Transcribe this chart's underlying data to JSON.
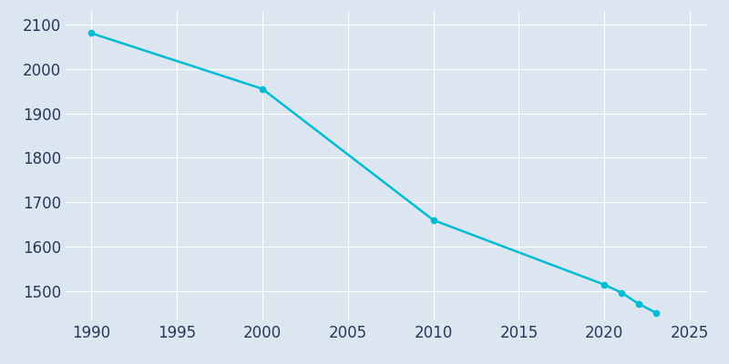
{
  "years": [
    1990,
    2000,
    2010,
    2020,
    2021,
    2022,
    2023
  ],
  "population": [
    2080,
    1955,
    1660,
    1515,
    1497,
    1472,
    1452
  ],
  "line_color": "#00BCD4",
  "marker_color": "#00BCD4",
  "bg_color": "#dce6f0",
  "plot_bg_color": "#dce6f0",
  "text_color": "#263858",
  "xlim": [
    1988.5,
    2026
  ],
  "ylim": [
    1435,
    2130
  ],
  "xticks": [
    1990,
    1995,
    2000,
    2005,
    2010,
    2015,
    2020,
    2025
  ],
  "yticks": [
    1500,
    1600,
    1700,
    1800,
    1900,
    2000,
    2100
  ],
  "grid_color": "#ffffff",
  "linewidth": 1.8,
  "markersize": 4.5,
  "tick_labelsize": 12
}
